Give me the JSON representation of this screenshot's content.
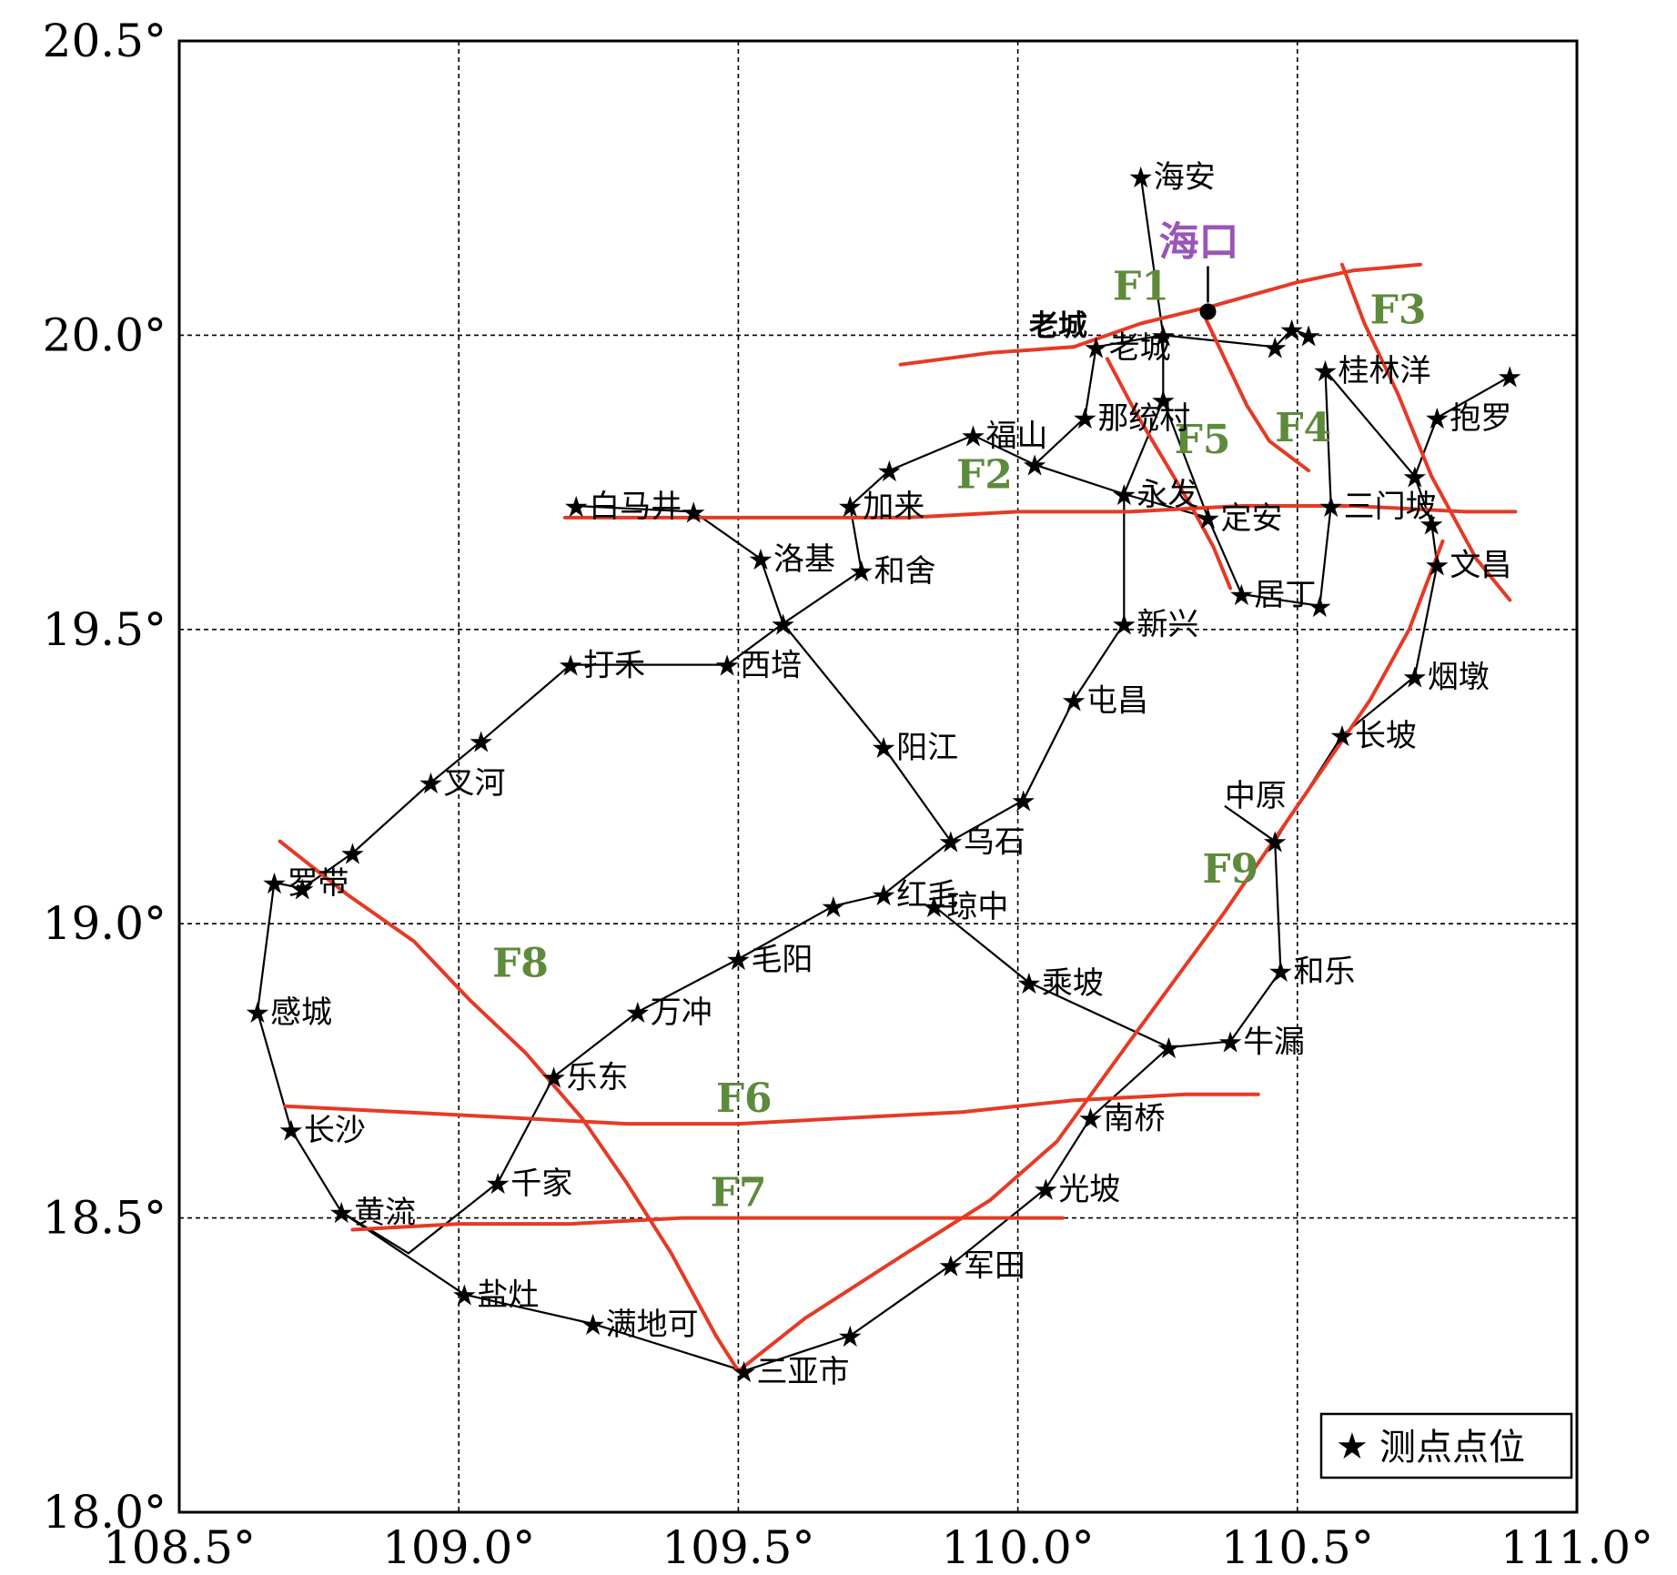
{
  "map": {
    "lon_range": [
      108.5,
      111.0
    ],
    "lat_range": [
      18.0,
      20.5
    ],
    "x_ticks": [
      108.5,
      109.0,
      109.5,
      110.0,
      110.5,
      111.0
    ],
    "y_ticks": [
      18.0,
      18.5,
      19.0,
      19.5,
      20.0,
      20.5
    ],
    "x_tick_labels": [
      "108.5°",
      "109.0°",
      "109.5°",
      "110.0°",
      "110.5°",
      "111.0°"
    ],
    "y_tick_labels": [
      "18.0°",
      "18.5°",
      "19.0°",
      "19.5°",
      "20.0°",
      "20.5°"
    ],
    "grid": true,
    "grid_style": "dashed",
    "colors": {
      "fault": "#e53a26",
      "fault_label": "#5e8a3c",
      "city": "#9a55b8",
      "line": "#000000"
    }
  },
  "legend": {
    "symbol": "★",
    "label": "测点点位",
    "placement": "bottom-right"
  },
  "city": {
    "name": "海口",
    "lon": 110.34,
    "lat": 20.04
  },
  "other_labels": [
    {
      "text": "老城",
      "lon": 110.02,
      "lat": 20.0
    },
    {
      "text": "中原",
      "lon": 110.37,
      "lat": 19.2
    }
  ],
  "stations": [
    {
      "name": "海安",
      "lon": 110.22,
      "lat": 20.27
    },
    {
      "name": "老城",
      "lon": 110.14,
      "lat": 19.98
    },
    {
      "name": "",
      "lon": 110.26,
      "lat": 20.0
    },
    {
      "name": "",
      "lon": 110.26,
      "lat": 19.89
    },
    {
      "name": "",
      "lon": 110.46,
      "lat": 19.98
    },
    {
      "name": "",
      "lon": 110.49,
      "lat": 20.01
    },
    {
      "name": "",
      "lon": 110.52,
      "lat": 20.0
    },
    {
      "name": "桂林洋",
      "lon": 110.55,
      "lat": 19.94
    },
    {
      "name": "那统村",
      "lon": 110.12,
      "lat": 19.86
    },
    {
      "name": "福山",
      "lon": 109.92,
      "lat": 19.83
    },
    {
      "name": "",
      "lon": 110.03,
      "lat": 19.78
    },
    {
      "name": "",
      "lon": 109.77,
      "lat": 19.77
    },
    {
      "name": "永发",
      "lon": 110.19,
      "lat": 19.73
    },
    {
      "name": "加来",
      "lon": 109.7,
      "lat": 19.71
    },
    {
      "name": "三门坡",
      "lon": 110.56,
      "lat": 19.71
    },
    {
      "name": "抱罗",
      "lon": 110.75,
      "lat": 19.86
    },
    {
      "name": "",
      "lon": 110.88,
      "lat": 19.93
    },
    {
      "name": "",
      "lon": 110.71,
      "lat": 19.76
    },
    {
      "name": "",
      "lon": 110.74,
      "lat": 19.68
    },
    {
      "name": "白马井",
      "lon": 109.21,
      "lat": 19.71
    },
    {
      "name": "",
      "lon": 109.42,
      "lat": 19.7
    },
    {
      "name": "定安",
      "lon": 110.34,
      "lat": 19.69
    },
    {
      "name": "洛基",
      "lon": 109.54,
      "lat": 19.62
    },
    {
      "name": "和舍",
      "lon": 109.72,
      "lat": 19.6
    },
    {
      "name": "文昌",
      "lon": 110.75,
      "lat": 19.61
    },
    {
      "name": "居丁",
      "lon": 110.4,
      "lat": 19.56
    },
    {
      "name": "",
      "lon": 110.54,
      "lat": 19.54
    },
    {
      "name": "",
      "lon": 109.58,
      "lat": 19.51
    },
    {
      "name": "新兴",
      "lon": 110.19,
      "lat": 19.51
    },
    {
      "name": "打禾",
      "lon": 109.2,
      "lat": 19.44
    },
    {
      "name": "西培",
      "lon": 109.48,
      "lat": 19.44
    },
    {
      "name": "烟墩",
      "lon": 110.71,
      "lat": 19.42
    },
    {
      "name": "屯昌",
      "lon": 110.1,
      "lat": 19.38
    },
    {
      "name": "长坡",
      "lon": 110.58,
      "lat": 19.32
    },
    {
      "name": "",
      "lon": 109.04,
      "lat": 19.31
    },
    {
      "name": "阳江",
      "lon": 109.76,
      "lat": 19.3
    },
    {
      "name": "叉河",
      "lon": 108.95,
      "lat": 19.24
    },
    {
      "name": "",
      "lon": 110.01,
      "lat": 19.21
    },
    {
      "name": "乌石",
      "lon": 109.88,
      "lat": 19.14
    },
    {
      "name": "",
      "lon": 110.46,
      "lat": 19.14
    },
    {
      "name": "",
      "lon": 108.81,
      "lat": 19.12
    },
    {
      "name": "罗带",
      "lon": 108.67,
      "lat": 19.07
    },
    {
      "name": "",
      "lon": 108.72,
      "lat": 19.06
    },
    {
      "name": "红毛",
      "lon": 109.76,
      "lat": 19.05
    },
    {
      "name": "",
      "lon": 109.67,
      "lat": 19.03
    },
    {
      "name": "琼中",
      "lon": 109.85,
      "lat": 19.03
    },
    {
      "name": "毛阳",
      "lon": 109.5,
      "lat": 18.94
    },
    {
      "name": "和乐",
      "lon": 110.47,
      "lat": 18.92
    },
    {
      "name": "乘坡",
      "lon": 110.02,
      "lat": 18.9
    },
    {
      "name": "感城",
      "lon": 108.64,
      "lat": 18.85
    },
    {
      "name": "万冲",
      "lon": 109.32,
      "lat": 18.85
    },
    {
      "name": "牛漏",
      "lon": 110.38,
      "lat": 18.8
    },
    {
      "name": "",
      "lon": 110.27,
      "lat": 18.79
    },
    {
      "name": "乐东",
      "lon": 109.17,
      "lat": 18.74
    },
    {
      "name": "南桥",
      "lon": 110.13,
      "lat": 18.67
    },
    {
      "name": "长沙",
      "lon": 108.7,
      "lat": 18.65
    },
    {
      "name": "千家",
      "lon": 109.07,
      "lat": 18.56
    },
    {
      "name": "光坡",
      "lon": 110.05,
      "lat": 18.55
    },
    {
      "name": "黄流",
      "lon": 108.79,
      "lat": 18.51
    },
    {
      "name": "军田",
      "lon": 109.88,
      "lat": 18.42
    },
    {
      "name": "盐灶",
      "lon": 109.01,
      "lat": 18.37
    },
    {
      "name": "满地可",
      "lon": 109.24,
      "lat": 18.32
    },
    {
      "name": "",
      "lon": 109.7,
      "lat": 18.3
    },
    {
      "name": "三亚市",
      "lon": 109.51,
      "lat": 18.24
    }
  ],
  "network": [
    [
      [
        110.22,
        20.27
      ],
      [
        110.26,
        20.0
      ],
      [
        110.26,
        19.89
      ],
      [
        110.19,
        19.73
      ],
      [
        110.19,
        19.51
      ],
      [
        110.1,
        19.38
      ],
      [
        110.01,
        19.21
      ],
      [
        109.88,
        19.14
      ],
      [
        109.76,
        19.05
      ],
      [
        109.67,
        19.03
      ],
      [
        109.5,
        18.94
      ],
      [
        109.32,
        18.85
      ],
      [
        109.17,
        18.74
      ],
      [
        109.07,
        18.56
      ],
      [
        108.91,
        18.44
      ],
      [
        108.79,
        18.51
      ],
      [
        108.7,
        18.65
      ],
      [
        108.64,
        18.85
      ],
      [
        108.67,
        19.07
      ],
      [
        108.72,
        19.06
      ],
      [
        108.81,
        19.12
      ],
      [
        108.95,
        19.24
      ],
      [
        109.04,
        19.31
      ],
      [
        109.2,
        19.44
      ],
      [
        109.48,
        19.44
      ],
      [
        109.58,
        19.51
      ]
    ],
    [
      [
        110.14,
        19.98
      ],
      [
        110.26,
        20.0
      ],
      [
        110.46,
        19.98
      ],
      [
        110.49,
        20.01
      ],
      [
        110.52,
        20.0
      ]
    ],
    [
      [
        110.14,
        19.98
      ],
      [
        110.12,
        19.86
      ],
      [
        110.03,
        19.78
      ],
      [
        109.92,
        19.83
      ],
      [
        109.77,
        19.77
      ],
      [
        109.7,
        19.71
      ],
      [
        109.72,
        19.6
      ],
      [
        109.58,
        19.51
      ],
      [
        109.54,
        19.62
      ],
      [
        109.42,
        19.7
      ],
      [
        109.21,
        19.71
      ]
    ],
    [
      [
        110.03,
        19.78
      ],
      [
        110.19,
        19.73
      ],
      [
        110.34,
        19.69
      ],
      [
        110.4,
        19.56
      ],
      [
        110.54,
        19.54
      ],
      [
        110.56,
        19.71
      ],
      [
        110.55,
        19.94
      ],
      [
        110.71,
        19.76
      ],
      [
        110.74,
        19.68
      ],
      [
        110.75,
        19.61
      ],
      [
        110.71,
        19.42
      ],
      [
        110.58,
        19.32
      ],
      [
        110.46,
        19.14
      ],
      [
        110.47,
        18.92
      ],
      [
        110.38,
        18.8
      ],
      [
        110.27,
        18.79
      ],
      [
        110.13,
        18.67
      ],
      [
        110.05,
        18.55
      ],
      [
        109.88,
        18.42
      ],
      [
        109.7,
        18.3
      ],
      [
        109.51,
        18.24
      ],
      [
        109.24,
        18.32
      ],
      [
        109.01,
        18.37
      ],
      [
        108.79,
        18.51
      ]
    ],
    [
      [
        110.34,
        19.69
      ],
      [
        110.26,
        19.89
      ]
    ],
    [
      [
        110.71,
        19.76
      ],
      [
        110.75,
        19.86
      ],
      [
        110.88,
        19.93
      ]
    ],
    [
      [
        109.58,
        19.51
      ],
      [
        109.76,
        19.3
      ],
      [
        109.88,
        19.14
      ]
    ],
    [
      [
        109.85,
        19.03
      ],
      [
        110.02,
        18.9
      ],
      [
        110.27,
        18.79
      ]
    ],
    [
      [
        110.46,
        19.14
      ],
      [
        110.37,
        19.2
      ]
    ]
  ],
  "faults": [
    {
      "name": "F1",
      "label_lon": 110.17,
      "label_lat": 20.06,
      "points": [
        [
          109.79,
          19.95
        ],
        [
          109.95,
          19.97
        ],
        [
          110.1,
          19.98
        ],
        [
          110.22,
          20.02
        ],
        [
          110.35,
          20.05
        ],
        [
          110.5,
          20.09
        ],
        [
          110.6,
          20.11
        ],
        [
          110.72,
          20.12
        ]
      ]
    },
    {
      "name": "F2",
      "label_lon": 109.89,
      "label_lat": 19.74,
      "points": [
        [
          109.19,
          19.69
        ],
        [
          109.4,
          19.69
        ],
        [
          109.6,
          19.69
        ],
        [
          109.8,
          19.69
        ],
        [
          110.0,
          19.7
        ],
        [
          110.2,
          19.7
        ],
        [
          110.4,
          19.71
        ],
        [
          110.6,
          19.71
        ],
        [
          110.8,
          19.7
        ],
        [
          110.89,
          19.7
        ]
      ]
    },
    {
      "name": "F3",
      "label_lon": 110.63,
      "label_lat": 20.02,
      "points": [
        [
          110.58,
          20.12
        ],
        [
          110.62,
          20.02
        ],
        [
          110.68,
          19.9
        ],
        [
          110.74,
          19.76
        ],
        [
          110.82,
          19.62
        ],
        [
          110.88,
          19.55
        ]
      ]
    },
    {
      "name": "F4",
      "label_lon": 110.46,
      "label_lat": 19.82,
      "points": [
        [
          110.33,
          20.04
        ],
        [
          110.37,
          19.96
        ],
        [
          110.41,
          19.88
        ],
        [
          110.45,
          19.82
        ],
        [
          110.52,
          19.77
        ]
      ]
    },
    {
      "name": "F5",
      "label_lon": 110.28,
      "label_lat": 19.8,
      "points": [
        [
          110.16,
          19.96
        ],
        [
          110.21,
          19.87
        ],
        [
          110.26,
          19.79
        ],
        [
          110.31,
          19.71
        ],
        [
          110.35,
          19.64
        ],
        [
          110.38,
          19.57
        ]
      ]
    },
    {
      "name": "F6",
      "label_lon": 109.46,
      "label_lat": 18.68,
      "points": [
        [
          108.69,
          18.69
        ],
        [
          108.9,
          18.68
        ],
        [
          109.1,
          18.67
        ],
        [
          109.3,
          18.66
        ],
        [
          109.5,
          18.66
        ],
        [
          109.7,
          18.67
        ],
        [
          109.9,
          18.68
        ],
        [
          110.1,
          18.7
        ],
        [
          110.3,
          18.71
        ],
        [
          110.43,
          18.71
        ]
      ]
    },
    {
      "name": "F7",
      "label_lon": 109.45,
      "label_lat": 18.52,
      "points": [
        [
          108.81,
          18.48
        ],
        [
          109.0,
          18.49
        ],
        [
          109.2,
          18.49
        ],
        [
          109.4,
          18.5
        ],
        [
          109.6,
          18.5
        ],
        [
          109.8,
          18.5
        ],
        [
          110.08,
          18.5
        ]
      ]
    },
    {
      "name": "F8",
      "label_lon": 109.06,
      "label_lat": 18.91,
      "points": [
        [
          108.68,
          19.14
        ],
        [
          108.8,
          19.05
        ],
        [
          108.92,
          18.97
        ],
        [
          109.02,
          18.87
        ],
        [
          109.12,
          18.78
        ],
        [
          109.22,
          18.67
        ],
        [
          109.3,
          18.56
        ],
        [
          109.38,
          18.44
        ],
        [
          109.46,
          18.3
        ],
        [
          109.5,
          18.24
        ]
      ]
    },
    {
      "name": "F9",
      "label_lon": 110.33,
      "label_lat": 19.07,
      "points": [
        [
          109.5,
          18.24
        ],
        [
          109.62,
          18.33
        ],
        [
          109.8,
          18.44
        ],
        [
          109.95,
          18.53
        ],
        [
          110.07,
          18.63
        ],
        [
          110.2,
          18.8
        ],
        [
          110.37,
          19.02
        ],
        [
          110.5,
          19.2
        ],
        [
          110.63,
          19.38
        ],
        [
          110.7,
          19.5
        ],
        [
          110.76,
          19.65
        ]
      ]
    }
  ]
}
